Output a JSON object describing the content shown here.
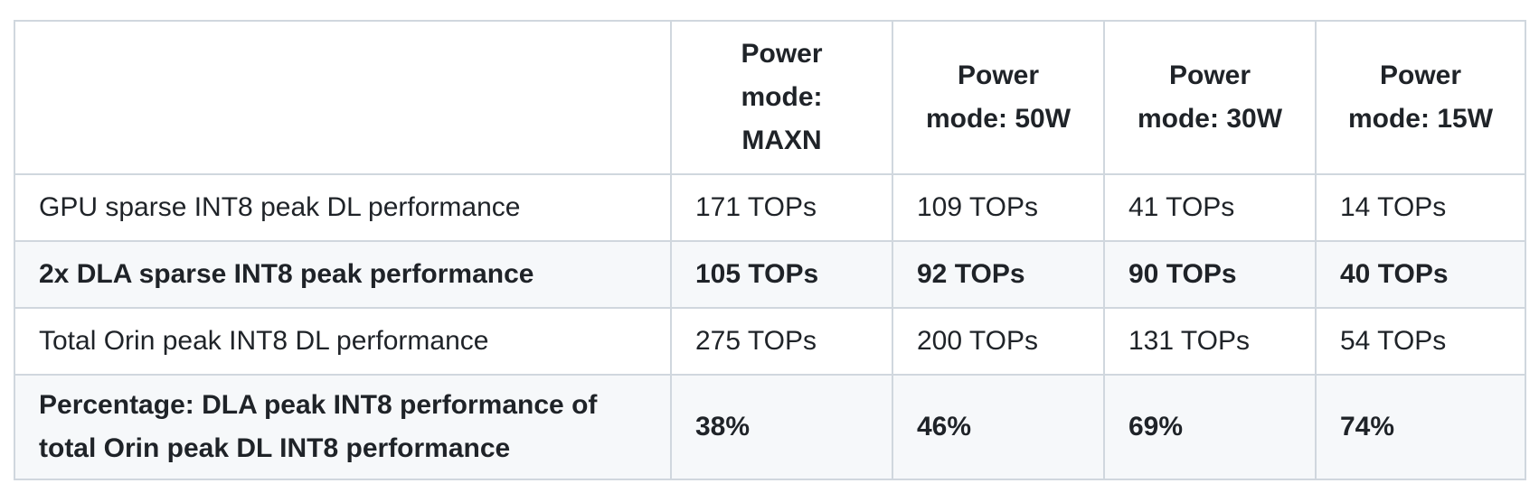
{
  "table": {
    "header": [
      "Power mode: MAXN",
      "Power mode: 50W",
      "Power mode: 30W",
      "Power mode: 15W"
    ],
    "rows": [
      {
        "cells": [
          "GPU sparse INT8 peak DL performance",
          "171 TOPs",
          "109 TOPs",
          "41 TOPs",
          "14 TOPs"
        ],
        "bold": false
      },
      {
        "cells": [
          "2x DLA sparse INT8 peak performance",
          "105 TOPs",
          "92 TOPs",
          "90 TOPs",
          "40 TOPs"
        ],
        "bold": true
      },
      {
        "cells": [
          "Total Orin peak INT8 DL performance",
          "275 TOPs",
          "200 TOPs",
          "131 TOPs",
          "54 TOPs"
        ],
        "bold": false
      },
      {
        "cells": [
          "Percentage: DLA peak INT8 performance of total Orin peak DL INT8 performance",
          "38%",
          "46%",
          "69%",
          "74%"
        ],
        "bold": true
      }
    ]
  }
}
